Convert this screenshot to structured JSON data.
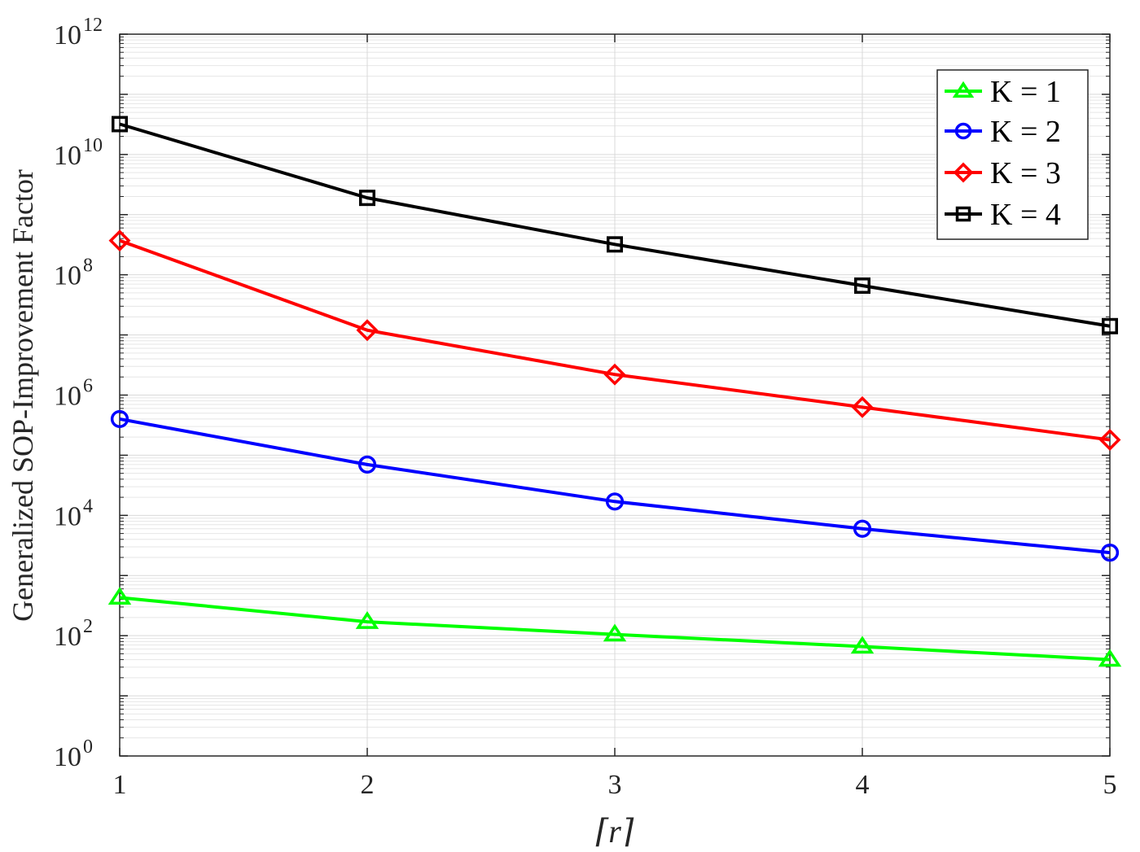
{
  "chart_data": {
    "type": "line",
    "xlabel": "⌈r⌉",
    "ylabel": "Generalized SOP-Improvement Factor",
    "yscale": "log",
    "ylim_exponents": [
      0,
      12
    ],
    "xlim": [
      1,
      5
    ],
    "x": [
      1,
      2,
      3,
      4,
      5
    ],
    "x_tick_labels": [
      "1",
      "2",
      "3",
      "4",
      "5"
    ],
    "y_tick_base": "10",
    "y_tick_exponents": [
      "0",
      "2",
      "4",
      "6",
      "8",
      "10",
      "12"
    ],
    "grid": true,
    "legend_position": "top-right",
    "series": [
      {
        "name": "K = 1",
        "color": "#00ff00",
        "marker": "triangle",
        "values": [
          430,
          170,
          105,
          66,
          40
        ]
      },
      {
        "name": "K = 2",
        "color": "#0000ff",
        "marker": "circle",
        "values": [
          400000,
          70000,
          17000,
          6000,
          2400
        ]
      },
      {
        "name": "K = 3",
        "color": "#ff0000",
        "marker": "diamond",
        "values": [
          370000000,
          12000000,
          2200000,
          630000,
          180000
        ]
      },
      {
        "name": "K = 4",
        "color": "#000000",
        "marker": "square",
        "values": [
          32000000000,
          1900000000,
          320000000,
          66000000,
          14000000
        ]
      }
    ]
  }
}
